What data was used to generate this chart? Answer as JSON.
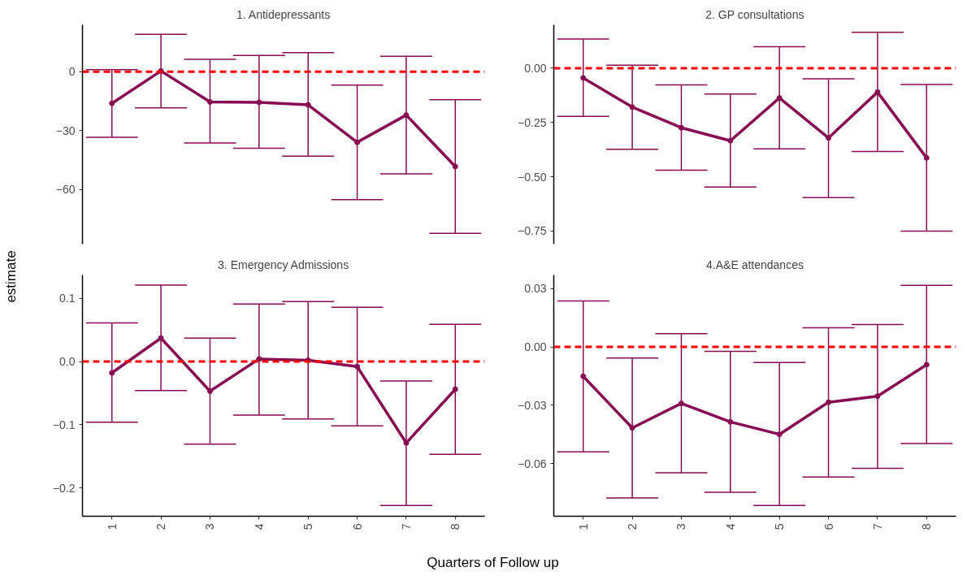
{
  "chart_data": [
    {
      "type": "line",
      "title": "1. Antidepressants",
      "ylabel": "estimate",
      "categories": [
        "1",
        "2",
        "3",
        "4",
        "5",
        "6",
        "7",
        "8"
      ],
      "tick_labels": "y",
      "marker": "circle",
      "line_style": "solid",
      "grid": false,
      "color": "#870a52",
      "values": [
        -16.1,
        0.4,
        -15.4,
        -15.6,
        -16.9,
        -36,
        -22.1,
        -48.4
      ],
      "errors": [
        [
          -33.4,
          1.1
        ],
        [
          -18.4,
          19.1
        ],
        [
          -36.4,
          6.4
        ],
        [
          -39,
          8.3
        ],
        [
          -43.1,
          9.8
        ],
        [
          -65.3,
          -6.8
        ],
        [
          -52.1,
          7.9
        ],
        [
          -82.5,
          -14.3
        ]
      ],
      "ylim": [
        -88,
        24
      ],
      "yticks": [
        {
          "value": -60,
          "label": "−60"
        },
        {
          "value": -30,
          "label": "−30"
        },
        {
          "value": 0,
          "label": "0"
        }
      ],
      "ref_lines": [
        {
          "axis": "y",
          "value": 0,
          "color": "#ff0000",
          "line_style": "dashed"
        }
      ]
    },
    {
      "type": "line",
      "title": "2. GP consultations",
      "categories": [
        "1",
        "2",
        "3",
        "4",
        "5",
        "6",
        "7",
        "8"
      ],
      "tick_labels": "y",
      "marker": "circle",
      "line_style": "solid",
      "grid": false,
      "color": "#870a52",
      "values": [
        -0.045,
        -0.179,
        -0.274,
        -0.334,
        -0.137,
        -0.321,
        -0.11,
        -0.413
      ],
      "errors": [
        [
          -0.222,
          0.135
        ],
        [
          -0.373,
          0.014
        ],
        [
          -0.47,
          -0.077
        ],
        [
          -0.547,
          -0.119
        ],
        [
          -0.371,
          0.099
        ],
        [
          -0.596,
          -0.049
        ],
        [
          -0.384,
          0.165
        ],
        [
          -0.75,
          -0.075
        ]
      ],
      "ylim": [
        -0.81,
        0.2
      ],
      "yticks": [
        {
          "value": -0.75,
          "label": "−0.75"
        },
        {
          "value": -0.5,
          "label": "−0.50"
        },
        {
          "value": -0.25,
          "label": "−0.25"
        },
        {
          "value": 0,
          "label": "0.00"
        }
      ],
      "ref_lines": [
        {
          "axis": "y",
          "value": 0,
          "color": "#ff0000",
          "line_style": "dashed"
        }
      ]
    },
    {
      "type": "line",
      "title": "3. Emergency Admissions",
      "xlabel": "Quarters of Follow up",
      "categories": [
        "1",
        "2",
        "3",
        "4",
        "5",
        "6",
        "7",
        "8"
      ],
      "marker": "circle",
      "line_style": "solid",
      "grid": false,
      "color": "#870a52",
      "values": [
        -0.018,
        0.037,
        -0.047,
        0.004,
        0.002,
        -0.008,
        -0.129,
        -0.044
      ],
      "errors": [
        [
          -0.096,
          0.061
        ],
        [
          -0.046,
          0.121
        ],
        [
          -0.131,
          0.037
        ],
        [
          -0.085,
          0.091
        ],
        [
          -0.091,
          0.095
        ],
        [
          -0.102,
          0.086
        ],
        [
          -0.228,
          -0.031
        ],
        [
          -0.147,
          0.059
        ]
      ],
      "ylim": [
        -0.245,
        0.137
      ],
      "yticks": [
        {
          "value": -0.2,
          "label": "−0.2"
        },
        {
          "value": -0.1,
          "label": "−0.1"
        },
        {
          "value": 0,
          "label": "0.0"
        },
        {
          "value": 0.1,
          "label": "0.1"
        }
      ],
      "ref_lines": [
        {
          "axis": "y",
          "value": 0,
          "color": "#ff0000",
          "line_style": "dashed"
        }
      ]
    },
    {
      "type": "line",
      "title": "4.A&E attendances",
      "categories": [
        "1",
        "2",
        "3",
        "4",
        "5",
        "6",
        "7",
        "8"
      ],
      "marker": "circle",
      "line_style": "solid",
      "grid": false,
      "color": "#870a52",
      "values": [
        -0.0151,
        -0.0416,
        -0.029,
        -0.0385,
        -0.0449,
        -0.0284,
        -0.0253,
        -0.0091
      ],
      "errors": [
        [
          -0.0539,
          0.0236
        ],
        [
          -0.0776,
          -0.0057
        ],
        [
          -0.0647,
          0.0068
        ],
        [
          -0.0747,
          -0.0022
        ],
        [
          -0.0815,
          -0.008
        ],
        [
          -0.0669,
          0.0099
        ],
        [
          -0.0624,
          0.0115
        ],
        [
          -0.0496,
          0.0317
        ]
      ],
      "ylim": [
        -0.087,
        0.037
      ],
      "yticks": [
        {
          "value": -0.06,
          "label": "−0.06"
        },
        {
          "value": -0.03,
          "label": "−0.03"
        },
        {
          "value": 0,
          "label": "0.00"
        },
        {
          "value": 0.03,
          "label": "0.03"
        }
      ],
      "ref_lines": [
        {
          "axis": "y",
          "value": 0,
          "color": "#ff0000",
          "line_style": "dashed"
        }
      ]
    }
  ]
}
